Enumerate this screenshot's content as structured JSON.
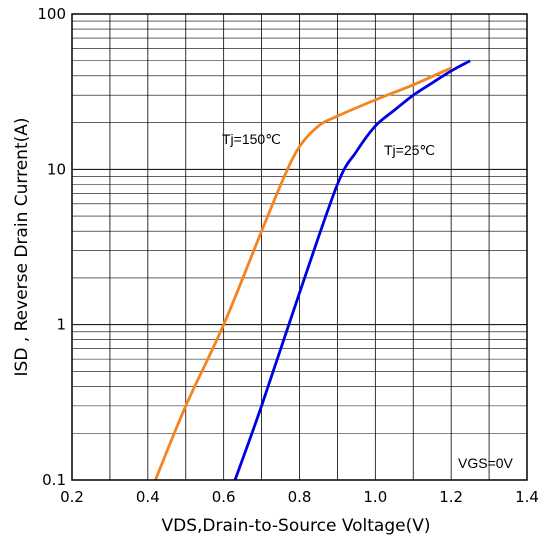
{
  "chart_data": {
    "type": "line",
    "title": "",
    "xlabel": "VDS,Drain-to-Source Voltage(V)",
    "ylabel": "ISD , Reverse Drain Current(A)",
    "x_scale": "linear",
    "y_scale": "log",
    "xlim": [
      0.2,
      1.4
    ],
    "ylim": [
      0.1,
      100
    ],
    "x_ticks": [
      "0.2",
      "0.4",
      "0.6",
      "0.8",
      "1.0",
      "1.2",
      "1.4"
    ],
    "y_ticks": [
      "0.1",
      "1",
      "10",
      "100"
    ],
    "grid": true,
    "annotation": "VGS=0V",
    "series": [
      {
        "name": "Tj=150℃",
        "color": "#f5841f",
        "x": [
          0.42,
          0.5,
          0.6,
          0.7,
          0.76,
          0.8,
          0.85,
          0.9,
          1.0,
          1.1,
          1.2
        ],
        "y": [
          0.1,
          0.3,
          1.0,
          4.0,
          9.0,
          14.0,
          19.0,
          22.0,
          28.0,
          35.0,
          45.0
        ]
      },
      {
        "name": "Tj=25℃",
        "color": "#0000e0",
        "x": [
          0.63,
          0.7,
          0.8,
          0.9,
          0.95,
          1.0,
          1.05,
          1.1,
          1.15,
          1.2,
          1.25
        ],
        "y": [
          0.1,
          0.3,
          1.6,
          8.0,
          13.0,
          19.0,
          24.0,
          30.0,
          36.0,
          43.0,
          50.0
        ]
      }
    ]
  }
}
